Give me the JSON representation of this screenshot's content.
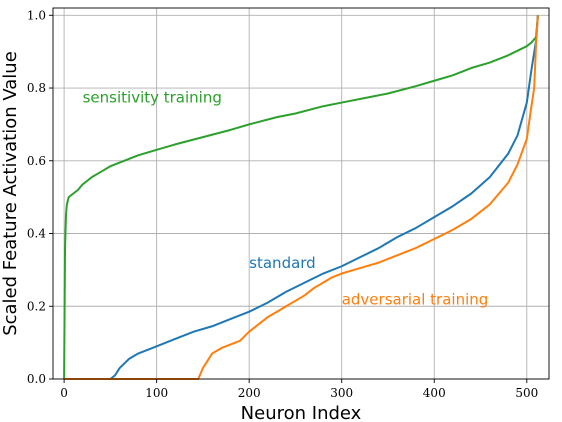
{
  "chart_data": {
    "type": "line",
    "title": "",
    "xlabel": "Neuron Index",
    "ylabel": "Scaled Feature Activation Value",
    "xlim": [
      -12,
      524
    ],
    "ylim": [
      0,
      1.02
    ],
    "xticks": [
      0,
      100,
      200,
      300,
      400,
      500
    ],
    "yticks": [
      0.0,
      0.2,
      0.4,
      0.6,
      0.8,
      1.0
    ],
    "xtick_labels": [
      "0",
      "100",
      "200",
      "300",
      "400",
      "500"
    ],
    "ytick_labels": [
      "0.0",
      "0.2",
      "0.4",
      "0.6",
      "0.8",
      "1.0"
    ],
    "grid": true,
    "legend": "none (series labeled inline)",
    "series": [
      {
        "name": "sensitivity training",
        "color": "#2ca02c",
        "points": [
          [
            0,
            0
          ],
          [
            1,
            0.36
          ],
          [
            2,
            0.45
          ],
          [
            3,
            0.48
          ],
          [
            5,
            0.5
          ],
          [
            10,
            0.51
          ],
          [
            15,
            0.52
          ],
          [
            20,
            0.535
          ],
          [
            30,
            0.555
          ],
          [
            40,
            0.57
          ],
          [
            50,
            0.585
          ],
          [
            60,
            0.595
          ],
          [
            70,
            0.605
          ],
          [
            80,
            0.615
          ],
          [
            100,
            0.63
          ],
          [
            120,
            0.645
          ],
          [
            150,
            0.665
          ],
          [
            180,
            0.685
          ],
          [
            200,
            0.7
          ],
          [
            230,
            0.72
          ],
          [
            250,
            0.73
          ],
          [
            280,
            0.75
          ],
          [
            300,
            0.76
          ],
          [
            330,
            0.775
          ],
          [
            350,
            0.785
          ],
          [
            380,
            0.805
          ],
          [
            400,
            0.82
          ],
          [
            420,
            0.835
          ],
          [
            440,
            0.855
          ],
          [
            460,
            0.87
          ],
          [
            480,
            0.89
          ],
          [
            500,
            0.915
          ],
          [
            505,
            0.925
          ],
          [
            510,
            0.94
          ],
          [
            511,
            0.97
          ],
          [
            512,
            1.0
          ]
        ]
      },
      {
        "name": "standard",
        "color": "#1f77b4",
        "points": [
          [
            0,
            0
          ],
          [
            50,
            0
          ],
          [
            55,
            0.01
          ],
          [
            60,
            0.03
          ],
          [
            70,
            0.055
          ],
          [
            80,
            0.07
          ],
          [
            100,
            0.09
          ],
          [
            120,
            0.11
          ],
          [
            140,
            0.13
          ],
          [
            160,
            0.145
          ],
          [
            180,
            0.165
          ],
          [
            200,
            0.185
          ],
          [
            220,
            0.21
          ],
          [
            240,
            0.24
          ],
          [
            260,
            0.265
          ],
          [
            280,
            0.29
          ],
          [
            300,
            0.31
          ],
          [
            320,
            0.335
          ],
          [
            340,
            0.36
          ],
          [
            360,
            0.39
          ],
          [
            380,
            0.415
          ],
          [
            400,
            0.445
          ],
          [
            420,
            0.475
          ],
          [
            440,
            0.51
          ],
          [
            460,
            0.555
          ],
          [
            480,
            0.62
          ],
          [
            490,
            0.67
          ],
          [
            500,
            0.76
          ],
          [
            505,
            0.85
          ],
          [
            510,
            0.93
          ],
          [
            512,
            1.0
          ]
        ]
      },
      {
        "name": "adversarial training",
        "color": "#ff7f0e",
        "points": [
          [
            0,
            0
          ],
          [
            145,
            0
          ],
          [
            150,
            0.03
          ],
          [
            155,
            0.05
          ],
          [
            160,
            0.07
          ],
          [
            170,
            0.085
          ],
          [
            180,
            0.095
          ],
          [
            190,
            0.105
          ],
          [
            200,
            0.13
          ],
          [
            210,
            0.15
          ],
          [
            220,
            0.17
          ],
          [
            230,
            0.185
          ],
          [
            240,
            0.2
          ],
          [
            250,
            0.215
          ],
          [
            260,
            0.23
          ],
          [
            270,
            0.25
          ],
          [
            280,
            0.265
          ],
          [
            290,
            0.28
          ],
          [
            300,
            0.29
          ],
          [
            320,
            0.305
          ],
          [
            340,
            0.32
          ],
          [
            360,
            0.34
          ],
          [
            380,
            0.36
          ],
          [
            400,
            0.385
          ],
          [
            420,
            0.41
          ],
          [
            440,
            0.44
          ],
          [
            460,
            0.48
          ],
          [
            480,
            0.54
          ],
          [
            490,
            0.59
          ],
          [
            500,
            0.66
          ],
          [
            505,
            0.75
          ],
          [
            508,
            0.8
          ],
          [
            510,
            0.92
          ],
          [
            512,
            1.0
          ]
        ]
      }
    ],
    "annotations": [
      {
        "text": "sensitivity training",
        "series": 0,
        "x": 20,
        "y": 0.76
      },
      {
        "text": "standard",
        "series": 1,
        "x": 200,
        "y": 0.305
      },
      {
        "text": "adversarial training",
        "series": 2,
        "x": 300,
        "y": 0.205
      }
    ]
  }
}
